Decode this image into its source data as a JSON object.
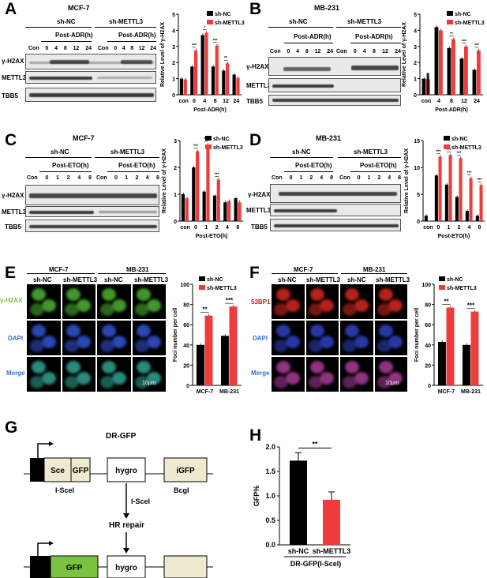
{
  "panels": {
    "A": {
      "letter": "A",
      "cell": "MCF-7",
      "groups": [
        "sh-NC",
        "sh-METTL3"
      ],
      "treatment": "Post-ADR(h)",
      "lanes": [
        "Con",
        "0",
        "4",
        "8",
        "12",
        "24"
      ],
      "rows": [
        "γ-H2AX",
        "METTL3",
        "TBB5"
      ]
    },
    "B": {
      "letter": "B",
      "cell": "MB-231",
      "groups": [
        "sh-NC",
        "sh-METTL3"
      ],
      "treatment": "Post-ADR(h)",
      "lanes": [
        "Con",
        "0",
        "4",
        "8",
        "12",
        "24"
      ],
      "rows": [
        "γ-H2AX",
        "METTL3",
        "TBB5"
      ]
    },
    "C": {
      "letter": "C",
      "cell": "MCF-7",
      "groups": [
        "sh-NC",
        "sh-METTL3"
      ],
      "treatment": "Post-ETO(h)",
      "lanes": [
        "Con",
        "0",
        "1",
        "2",
        "4",
        "8"
      ],
      "rows": [
        "γ-H2AX",
        "METTL3",
        "TBB5"
      ]
    },
    "D": {
      "letter": "D",
      "cell": "MB-231",
      "groups": [
        "sh-NC",
        "sh-METTL3"
      ],
      "treatment": "Post-ETO(h)",
      "lanes": [
        "Con",
        "0",
        "1",
        "2",
        "4",
        "8"
      ],
      "rows": [
        "γ-H2AX",
        "METTL3",
        "TBB5"
      ]
    },
    "E": {
      "letter": "E",
      "cells": [
        "MCF-7",
        "MB-231"
      ],
      "columns": [
        "sh-NC",
        "sh-METTL3",
        "sh-NC",
        "sh-METTL3"
      ],
      "rows": [
        "γ-H2AX",
        "DAPI",
        "Merge"
      ],
      "scale": "10μm"
    },
    "F": {
      "letter": "F",
      "cells": [
        "MCF-7",
        "MB-231"
      ],
      "columns": [
        "sh-NC",
        "sh-METTL3",
        "sh-NC",
        "sh-METTL3"
      ],
      "rows": [
        "53BP1",
        "DAPI",
        "Merge"
      ],
      "scale": "10μm"
    },
    "G": {
      "letter": "G",
      "title": "DR-GFP",
      "top_boxes": [
        "Sce",
        "GFP",
        "hygro",
        "iGFP"
      ],
      "site_labels": [
        "I-SceI",
        "BcgI"
      ],
      "arrow1": "I-SceI",
      "step": "HR repair",
      "bottom_boxes": [
        "GFP",
        "hygro"
      ]
    },
    "H": {
      "letter": "H"
    }
  },
  "chart_data": [
    {
      "id": "A",
      "type": "bar",
      "categories": [
        "con",
        "0",
        "4",
        "8",
        "12",
        "24"
      ],
      "xlabel": "Post-ADR(h)",
      "ylabel": "Relative Level of γ-H2AX",
      "ylim": [
        0,
        5
      ],
      "yticks": [
        0,
        1,
        2,
        3,
        4,
        5
      ],
      "legend": "top-right",
      "series": [
        {
          "name": "sh-NC",
          "values": [
            1.0,
            1.75,
            3.7,
            1.75,
            1.5,
            1.25
          ]
        },
        {
          "name": "sh-METTL3",
          "values": [
            0.95,
            2.75,
            3.85,
            3.05,
            1.95,
            1.05
          ]
        }
      ],
      "sig": [
        "",
        "***",
        "*",
        "***",
        "**",
        ""
      ]
    },
    {
      "id": "B",
      "type": "bar",
      "categories": [
        "con",
        "4",
        "8",
        "12",
        "24"
      ],
      "xlabel": "Post-ADR(h)",
      "ylabel": "Relative Level of γ-H2AX",
      "ylim": [
        0,
        5
      ],
      "yticks": [
        0,
        1,
        2,
        3,
        4,
        5
      ],
      "legend": "top-right",
      "series": [
        {
          "name": "sh-NC",
          "values": [
            1.0,
            4.2,
            2.9,
            2.25,
            1.55
          ]
        },
        {
          "name": "sh-METTL3",
          "values": [
            0.95,
            4.0,
            3.45,
            3.0,
            2.75
          ]
        }
      ],
      "extra_con_bar": 1.35,
      "sig": [
        "",
        "",
        "**",
        "***",
        "***"
      ]
    },
    {
      "id": "C",
      "type": "bar",
      "categories": [
        "con",
        "0",
        "1",
        "2",
        "4",
        "8"
      ],
      "xlabel": "Post-ETO(h)",
      "ylabel": "Relative Level of γ-H2AX",
      "ylim": [
        0,
        3
      ],
      "yticks": [
        0,
        1,
        2,
        3
      ],
      "legend": "top-right",
      "series": [
        {
          "name": "sh-NC",
          "values": [
            1.0,
            2.0,
            1.1,
            0.95,
            0.7,
            0.85
          ]
        },
        {
          "name": "sh-METTL3",
          "values": [
            0.85,
            2.6,
            2.85,
            1.55,
            0.75,
            0.7
          ]
        }
      ],
      "sig": [
        "",
        "***",
        "***",
        "***",
        "",
        ""
      ]
    },
    {
      "id": "D",
      "type": "bar",
      "categories": [
        "con",
        "0",
        "1",
        "2",
        "4",
        "8"
      ],
      "xlabel": "Post-ETO(h)",
      "ylabel": "Relative Level of γ-H2AX",
      "ylim": [
        0,
        15
      ],
      "yticks": [
        0,
        5,
        10,
        15
      ],
      "legend": "top-right",
      "series": [
        {
          "name": "sh-NC",
          "values": [
            1.0,
            8.5,
            6.8,
            4.5,
            1.9,
            1.0
          ]
        },
        {
          "name": "sh-METTL3",
          "values": [
            0.0,
            12.0,
            12.3,
            11.7,
            8.0,
            6.7
          ]
        }
      ],
      "sig": [
        "",
        "***",
        "***",
        "***",
        "***",
        "***"
      ]
    },
    {
      "id": "E",
      "type": "bar",
      "categories": [
        "MCF-7",
        "MB-231"
      ],
      "ylabel": "Foci number per cell",
      "ylim": [
        0,
        100
      ],
      "yticks": [
        0,
        20,
        40,
        60,
        80,
        100
      ],
      "legend": "top-left",
      "series": [
        {
          "name": "sh-NC",
          "values": [
            40,
            49
          ]
        },
        {
          "name": "sh-METTL3",
          "values": [
            69,
            78
          ]
        }
      ],
      "sig": [
        "**",
        "***"
      ]
    },
    {
      "id": "F",
      "type": "bar",
      "categories": [
        "MCF-7",
        "MB-231"
      ],
      "ylabel": "Foci number per cell",
      "ylim": [
        0,
        100
      ],
      "yticks": [
        0,
        20,
        40,
        60,
        80,
        100
      ],
      "legend": "top-left",
      "series": [
        {
          "name": "sh-NC",
          "values": [
            43,
            40
          ]
        },
        {
          "name": "sh-METTL3",
          "values": [
            77,
            73
          ]
        }
      ],
      "sig": [
        "**",
        "***"
      ]
    },
    {
      "id": "H",
      "type": "bar",
      "categories": [
        "sh-NC",
        "sh-METTL3"
      ],
      "xlabel": "DR-GFP(I-SceI)",
      "ylabel": "GFP%",
      "ylim": [
        0,
        2.0
      ],
      "yticks": [
        "0.0",
        "0.5",
        "1.0",
        "1.5",
        "2.0"
      ],
      "values": [
        1.72,
        0.92
      ],
      "sig": "**"
    }
  ],
  "colors": {
    "nc": "#000000",
    "mettl3": "#ee3b3b",
    "green": "#7cc242",
    "box": "#efe9d0",
    "red_label": "#e0161c",
    "blue_label": "#3a6fd8"
  }
}
